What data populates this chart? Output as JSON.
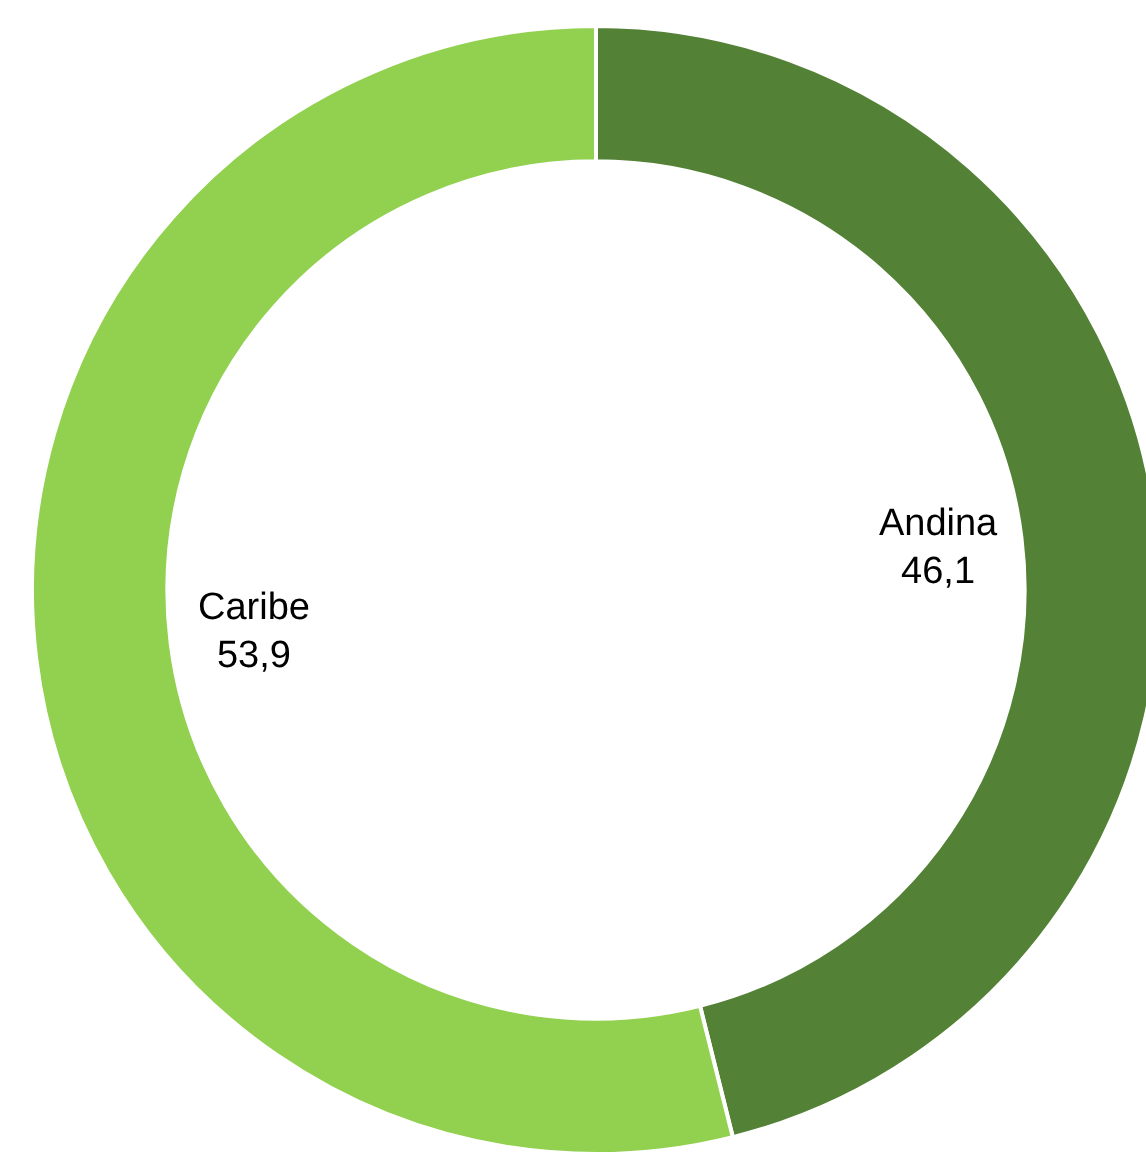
{
  "chart_data": {
    "type": "donut",
    "categories": [
      "Andina",
      "Caribe"
    ],
    "values": [
      46.1,
      53.9
    ],
    "colors": [
      "#538135",
      "#92d050"
    ],
    "value_labels": [
      "46,1",
      "53,9"
    ],
    "legend": false
  }
}
